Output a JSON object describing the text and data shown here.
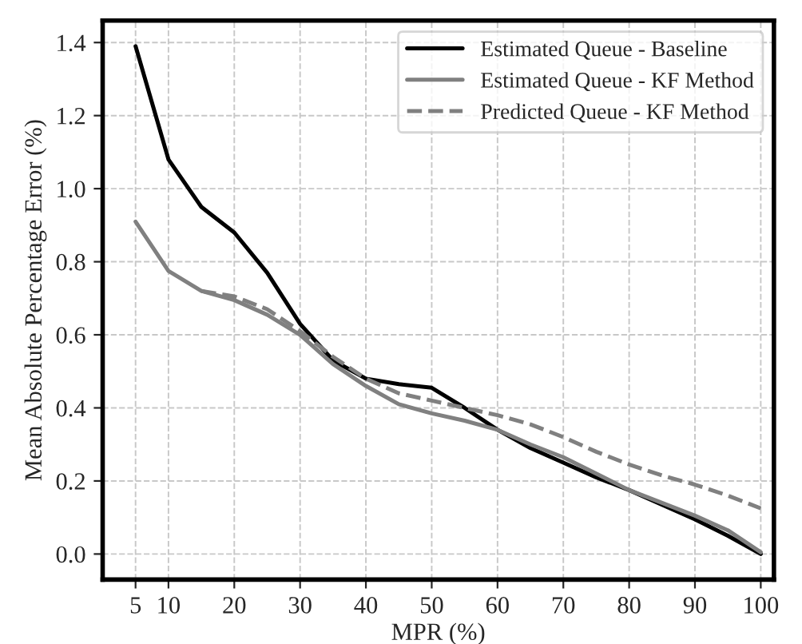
{
  "chart_data": {
    "type": "line",
    "xlabel": "MPR (%)",
    "ylabel": "Mean Absolute Percentage Error (%)",
    "x": [
      5,
      10,
      15,
      20,
      25,
      30,
      35,
      40,
      45,
      50,
      55,
      60,
      65,
      70,
      75,
      80,
      85,
      90,
      95,
      100
    ],
    "series": [
      {
        "name": "Estimated Queue - Baseline",
        "color": "#000000",
        "line_style": "solid",
        "values": [
          1.39,
          1.08,
          0.95,
          0.88,
          0.77,
          0.63,
          0.53,
          0.48,
          0.465,
          0.455,
          0.4,
          0.34,
          0.29,
          0.25,
          0.21,
          0.175,
          0.135,
          0.095,
          0.05,
          0.0
        ]
      },
      {
        "name": "Estimated Queue - KF Method",
        "color": "#808080",
        "line_style": "solid",
        "values": [
          0.91,
          0.775,
          0.72,
          0.695,
          0.655,
          0.6,
          0.52,
          0.46,
          0.41,
          0.385,
          0.365,
          0.34,
          0.3,
          0.265,
          0.22,
          0.175,
          0.14,
          0.105,
          0.065,
          0.005
        ]
      },
      {
        "name": "Predicted Queue - KF Method",
        "color": "#808080",
        "line_style": "dashed",
        "values": [
          null,
          null,
          0.72,
          0.705,
          0.67,
          0.61,
          0.54,
          0.48,
          0.44,
          0.42,
          0.4,
          0.38,
          0.355,
          0.32,
          0.28,
          0.245,
          0.215,
          0.19,
          0.16,
          0.125
        ]
      }
    ],
    "xlim": [
      0,
      102
    ],
    "ylim": [
      -0.07,
      1.46
    ],
    "xticks": [
      5,
      10,
      20,
      30,
      40,
      50,
      60,
      70,
      80,
      90,
      100
    ],
    "yticks": [
      {
        "value": 0,
        "label": "0.0"
      },
      0.2,
      0.4,
      0.6,
      0.8,
      {
        "value": 1,
        "label": "1.0"
      },
      1.2,
      1.4
    ],
    "grid": true,
    "legend": "top right"
  }
}
